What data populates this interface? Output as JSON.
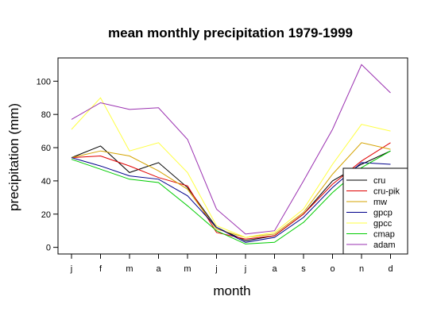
{
  "chart_data": {
    "type": "line",
    "title": "mean monthly precipitation 1979-1999",
    "xlabel": "month",
    "ylabel": "precipitation (mm)",
    "categories": [
      "j",
      "f",
      "m",
      "a",
      "m",
      "j",
      "j",
      "a",
      "s",
      "o",
      "n",
      "d"
    ],
    "yticks": [
      "0",
      "20",
      "40",
      "60",
      "80",
      "100"
    ],
    "ylim": [
      -4,
      114
    ],
    "grid": false,
    "legend_position": "bottom-right",
    "series": [
      {
        "name": "cru",
        "color": "#000000",
        "values": [
          54,
          61,
          45,
          51,
          36,
          12,
          4,
          7,
          20,
          40,
          50,
          58
        ]
      },
      {
        "name": "cru-pik",
        "color": "#e00000",
        "values": [
          54,
          55,
          49,
          42,
          37,
          9,
          5,
          7,
          20,
          38,
          52,
          63
        ]
      },
      {
        "name": "mw",
        "color": "#d4a300",
        "values": [
          54,
          58,
          55,
          46,
          35,
          11,
          6,
          8,
          21,
          44,
          63,
          59
        ]
      },
      {
        "name": "gpcp",
        "color": "#00008b",
        "values": [
          54,
          49,
          43,
          41,
          31,
          12,
          3,
          6,
          18,
          36,
          51,
          50
        ]
      },
      {
        "name": "gpcc",
        "color": "#ffff40",
        "values": [
          71,
          90,
          58,
          63,
          45,
          13,
          6,
          9,
          23,
          50,
          74,
          70
        ]
      },
      {
        "name": "cmap",
        "color": "#00cc00",
        "values": [
          53,
          47,
          41,
          39,
          25,
          10,
          2,
          3,
          15,
          33,
          48,
          58
        ]
      },
      {
        "name": "adam",
        "color": "#9a30b0",
        "values": [
          77,
          87,
          83,
          84,
          65,
          23,
          8,
          10,
          40,
          71,
          110,
          93
        ]
      }
    ]
  }
}
